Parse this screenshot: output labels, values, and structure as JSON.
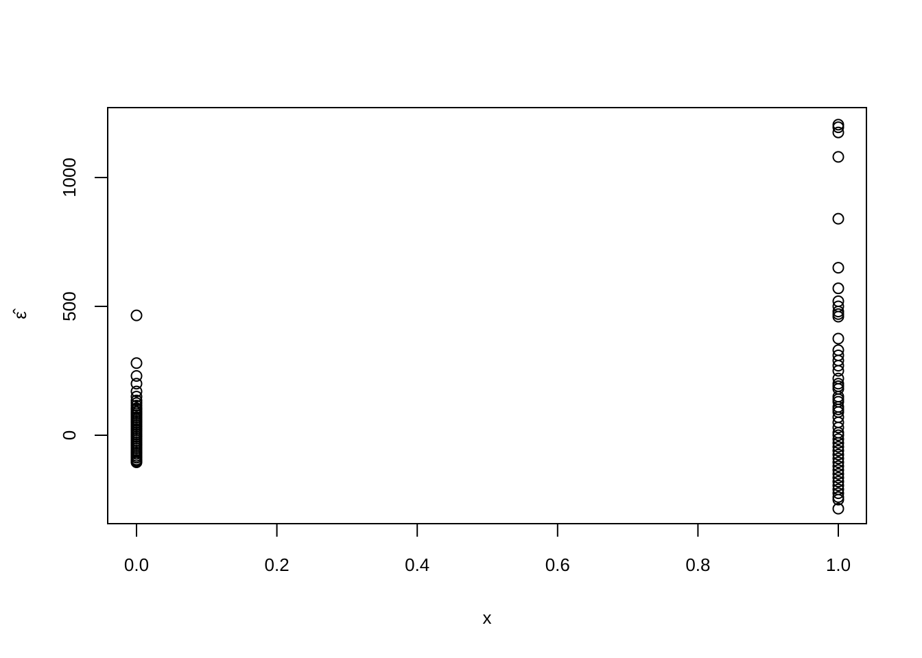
{
  "chart_data": {
    "type": "scatter",
    "title": "",
    "xlabel": "x",
    "ylabel": "ε̂",
    "xlim": [
      -0.04,
      1.04
    ],
    "ylim": [
      -343,
      1271
    ],
    "x_ticks": [
      0.0,
      0.2,
      0.4,
      0.6,
      0.8,
      1.0
    ],
    "x_tick_labels": [
      "0.0",
      "0.2",
      "0.4",
      "0.6",
      "0.8",
      "1.0"
    ],
    "y_ticks": [
      0,
      500,
      1000
    ],
    "y_tick_labels": [
      "0",
      "500",
      "1000"
    ],
    "grid": false,
    "marker": "open-circle",
    "series": [
      {
        "x": 0,
        "y": [
          465,
          280,
          230,
          200,
          170,
          150,
          135,
          125,
          115,
          105,
          100,
          92,
          85,
          78,
          70,
          62,
          55,
          48,
          40,
          33,
          25,
          18,
          10,
          3,
          -5,
          -12,
          -20,
          -28,
          -35,
          -42,
          -50,
          -58,
          -65,
          -72,
          -80,
          -87,
          -95,
          -100,
          -105
        ]
      },
      {
        "x": 1,
        "y": [
          1205,
          1195,
          1175,
          1080,
          840,
          650,
          570,
          520,
          500,
          480,
          470,
          460,
          375,
          330,
          310,
          290,
          270,
          250,
          220,
          200,
          190,
          180,
          150,
          140,
          130,
          110,
          100,
          90,
          70,
          50,
          30,
          10,
          0,
          -15,
          -30,
          -45,
          -60,
          -75,
          -90,
          -105,
          -120,
          -135,
          -150,
          -165,
          -180,
          -195,
          -210,
          -225,
          -240,
          -250,
          -285
        ]
      }
    ]
  }
}
